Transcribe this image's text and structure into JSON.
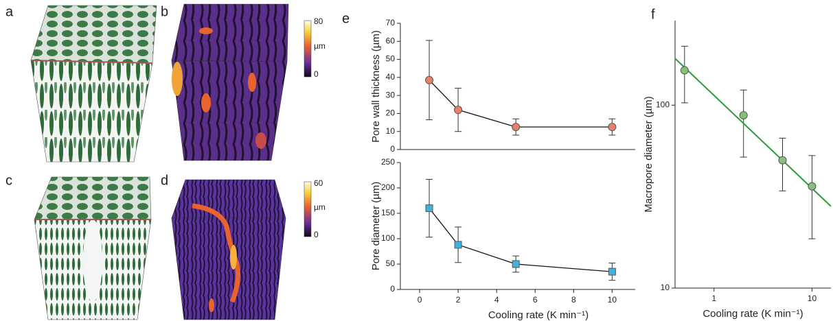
{
  "panel_labels": [
    "a",
    "b",
    "c",
    "d",
    "e",
    "f"
  ],
  "colorbars": [
    {
      "max": "80",
      "unit": "µm",
      "min": "0"
    },
    {
      "max": "60",
      "unit": "µm",
      "min": "0"
    }
  ],
  "chart_data": [
    {
      "type": "line",
      "ylabel": "Pore wall thickness (µm)",
      "x": [
        0.5,
        2,
        5,
        10
      ],
      "series": [
        {
          "color": "#e8806c",
          "marker": "circle",
          "values": [
            38.5,
            22,
            12.5,
            12.5
          ],
          "errors": [
            22,
            12,
            4.5,
            4.5
          ]
        }
      ],
      "xlim": [
        -1,
        11.2
      ],
      "ylim": [
        0,
        70
      ],
      "yticks": [
        0,
        10,
        20,
        30,
        40,
        50,
        60,
        70
      ]
    },
    {
      "type": "line",
      "ylabel": "Pore diameter (µm)",
      "xlabel": "Cooling rate (K min⁻¹)",
      "x": [
        0.5,
        2,
        5,
        10
      ],
      "series": [
        {
          "color": "#3fb2e2",
          "marker": "square",
          "values": [
            160,
            88,
            50,
            35
          ],
          "errors": [
            57,
            35,
            16,
            17
          ]
        }
      ],
      "xlim": [
        -1,
        11.2
      ],
      "xticks": [
        0,
        2,
        4,
        6,
        8,
        10
      ],
      "ylim": [
        0,
        250
      ],
      "yticks": [
        0,
        50,
        100,
        150,
        200,
        250
      ]
    },
    {
      "type": "scatter",
      "ylabel": "Macropore diameter (µm)",
      "xlabel": "Cooling rate (K min⁻¹)",
      "x": [
        0.5,
        2,
        5,
        10
      ],
      "series": [
        {
          "color": "#86c07a",
          "marker": "circle",
          "values": [
            155,
            88,
            50,
            36
          ],
          "error_low": [
            103,
            52,
            34,
            18.6
          ],
          "error_high": [
            210,
            121,
            66,
            53
          ]
        }
      ],
      "fit": {
        "color": "#2a9a3a",
        "x": [
          0.4,
          15.6
        ],
        "y": [
          180,
          28
        ]
      },
      "log_x": true,
      "log_y": true,
      "xlim": [
        0.4,
        15.6
      ],
      "xticks": [
        1,
        10
      ],
      "ylim": [
        10,
        290
      ],
      "yticks": [
        10,
        100
      ]
    }
  ]
}
